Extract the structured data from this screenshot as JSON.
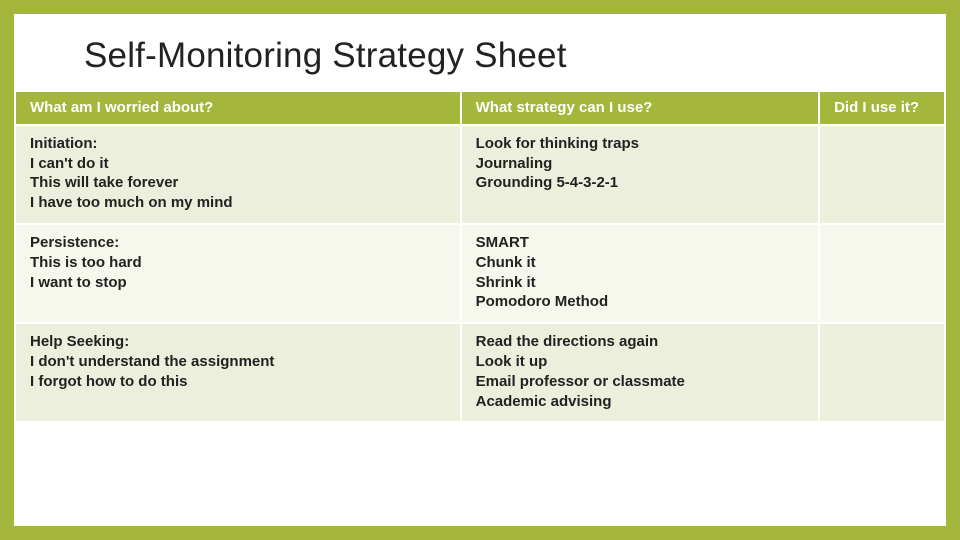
{
  "title": "Self-Monitoring Strategy Sheet",
  "colors": {
    "frame": "#a4b73c",
    "header_bg": "#a4b73c",
    "header_fg": "#ffffff",
    "row_alt_a": "#edefdd",
    "row_alt_b": "#f6f7ed",
    "text": "#222222"
  },
  "layout": {
    "col_widths_pct": [
      46,
      37,
      13
    ],
    "title_fontsize_pt": 26,
    "cell_fontsize_pt": 11,
    "font_family": "Segoe UI"
  },
  "table": {
    "columns": [
      "What am I worried about?",
      "What strategy can I use?",
      "Did I use it?"
    ],
    "rows": [
      {
        "worry": "Initiation:\nI can't do it\nThis will take forever\nI have too much on my mind",
        "strategy": "Look for thinking traps\nJournaling\nGrounding 5-4-3-2-1",
        "used": ""
      },
      {
        "worry": "Persistence:\nThis is too hard\nI want to stop",
        "strategy": "SMART\nChunk it\nShrink it\nPomodoro Method",
        "used": ""
      },
      {
        "worry": "Help Seeking:\nI don't understand the assignment\nI forgot how to do this",
        "strategy": "Read the directions again\nLook it up\nEmail professor or classmate\nAcademic advising",
        "used": ""
      }
    ]
  }
}
